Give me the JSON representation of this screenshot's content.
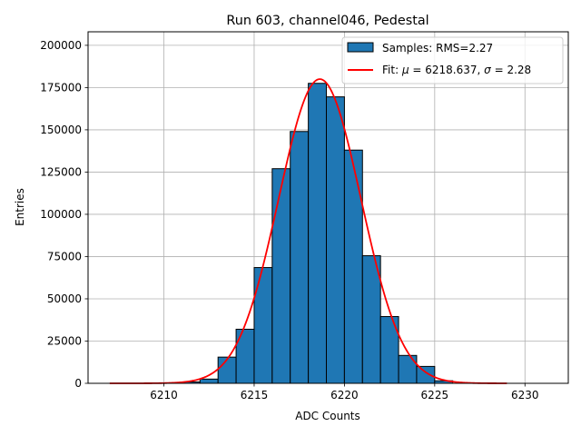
{
  "chart_data": {
    "type": "bar",
    "title": "Run 603, channel046, Pedestal",
    "xlabel": "ADC Counts",
    "ylabel": "Entries",
    "xlim": [
      6205.8,
      6232.4
    ],
    "ylim": [
      0,
      208000
    ],
    "xticks": [
      6210,
      6215,
      6220,
      6225,
      6230
    ],
    "yticks": [
      0,
      25000,
      50000,
      75000,
      100000,
      125000,
      150000,
      175000,
      200000
    ],
    "grid": true,
    "legend_position": "top-right",
    "histogram": {
      "name": "Samples: RMS=2.27",
      "color": "#1f77b4",
      "bin_width": 1,
      "bins": [
        {
          "left": 6211,
          "value": 800
        },
        {
          "left": 6212,
          "value": 2500
        },
        {
          "left": 6213,
          "value": 15500
        },
        {
          "left": 6214,
          "value": 32000
        },
        {
          "left": 6215,
          "value": 68500
        },
        {
          "left": 6216,
          "value": 127000
        },
        {
          "left": 6217,
          "value": 149000
        },
        {
          "left": 6218,
          "value": 177500
        },
        {
          "left": 6219,
          "value": 169500
        },
        {
          "left": 6220,
          "value": 138000
        },
        {
          "left": 6221,
          "value": 75500
        },
        {
          "left": 6222,
          "value": 39500
        },
        {
          "left": 6223,
          "value": 16500
        },
        {
          "left": 6224,
          "value": 10000
        },
        {
          "left": 6225,
          "value": 1500
        }
      ]
    },
    "fit": {
      "name": "Fit: μ = 6218.637, σ = 2.28",
      "name_parts": [
        "Fit: ",
        "μ",
        " = 6218.637, ",
        "σ",
        " = 2.28"
      ],
      "color": "#ff0000",
      "mu": 6218.637,
      "sigma": 2.28,
      "amplitude": 180000,
      "x_range": [
        6207,
        6229
      ]
    }
  }
}
